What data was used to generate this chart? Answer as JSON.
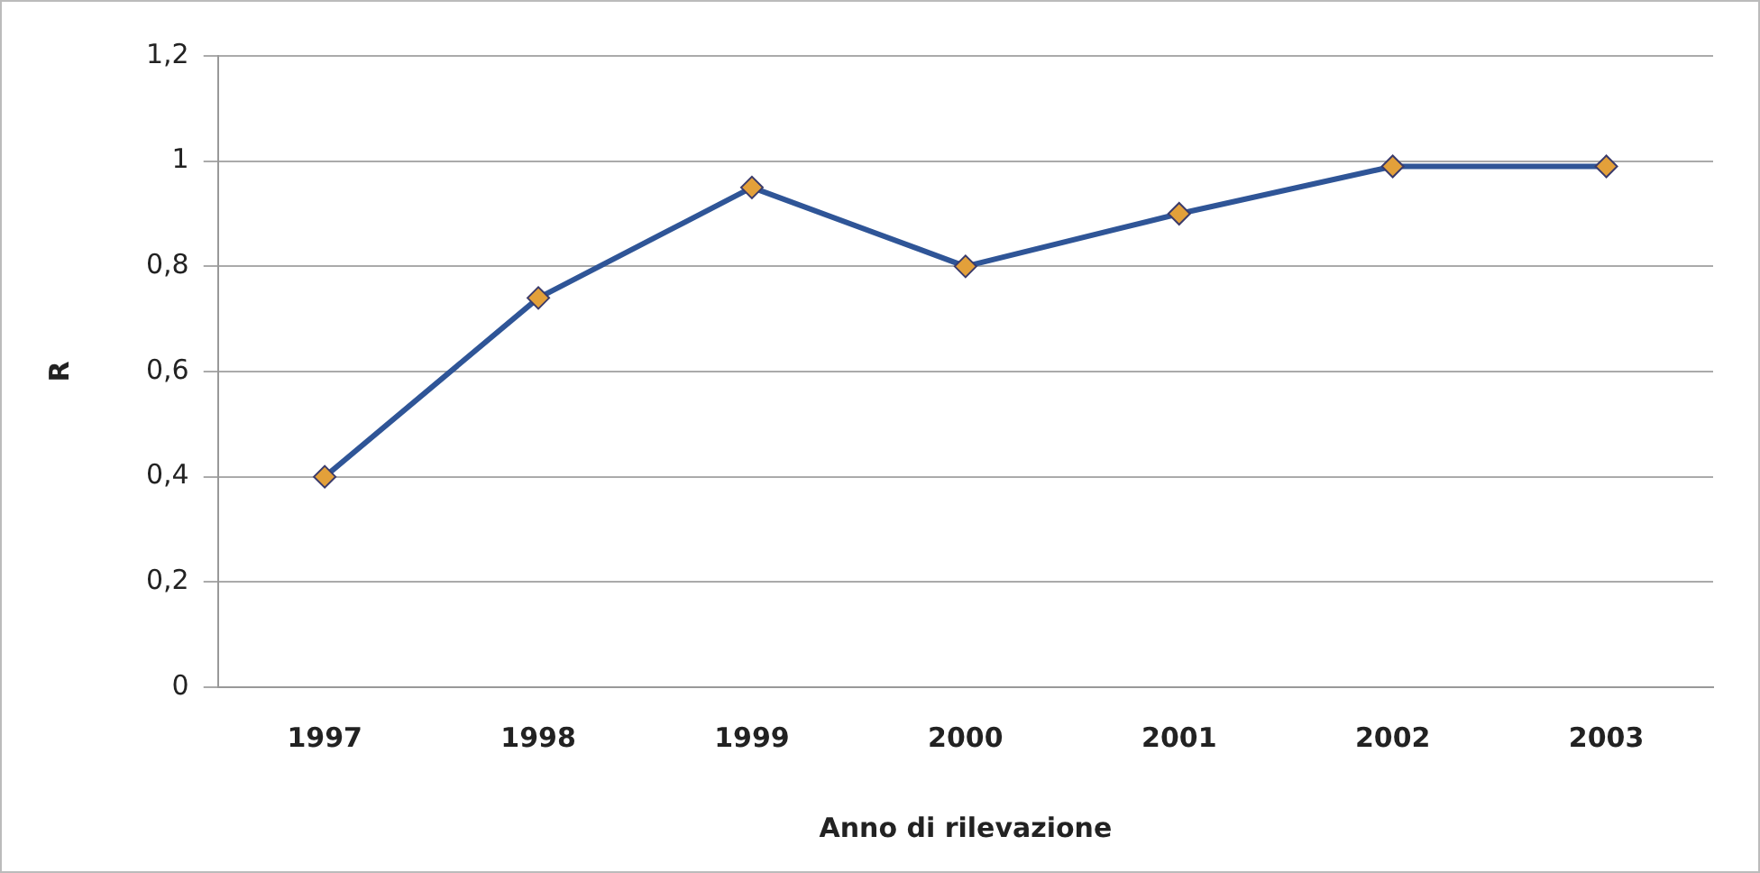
{
  "chart_data": {
    "type": "line",
    "xlabel": "Anno di rilevazione",
    "ylabel": "R",
    "categories": [
      "1997",
      "1998",
      "1999",
      "2000",
      "2001",
      "2002",
      "2003"
    ],
    "series": [
      {
        "color": "#2f5597",
        "values": [
          0.4,
          0.74,
          0.95,
          0.8,
          0.9,
          0.99,
          0.99
        ]
      }
    ],
    "ylim": [
      0,
      1.2
    ],
    "yticks": [
      0,
      {
        "value": 0.2,
        "label": "0,2"
      },
      {
        "value": 0.4,
        "label": "0,4"
      },
      {
        "value": 0.6,
        "label": "0,6"
      },
      {
        "value": 0.8,
        "label": "0,8"
      },
      1,
      {
        "value": 1.2,
        "label": "1,2"
      }
    ],
    "grid": "y",
    "legend": false,
    "marker": "diamond",
    "line_style": "solid"
  }
}
